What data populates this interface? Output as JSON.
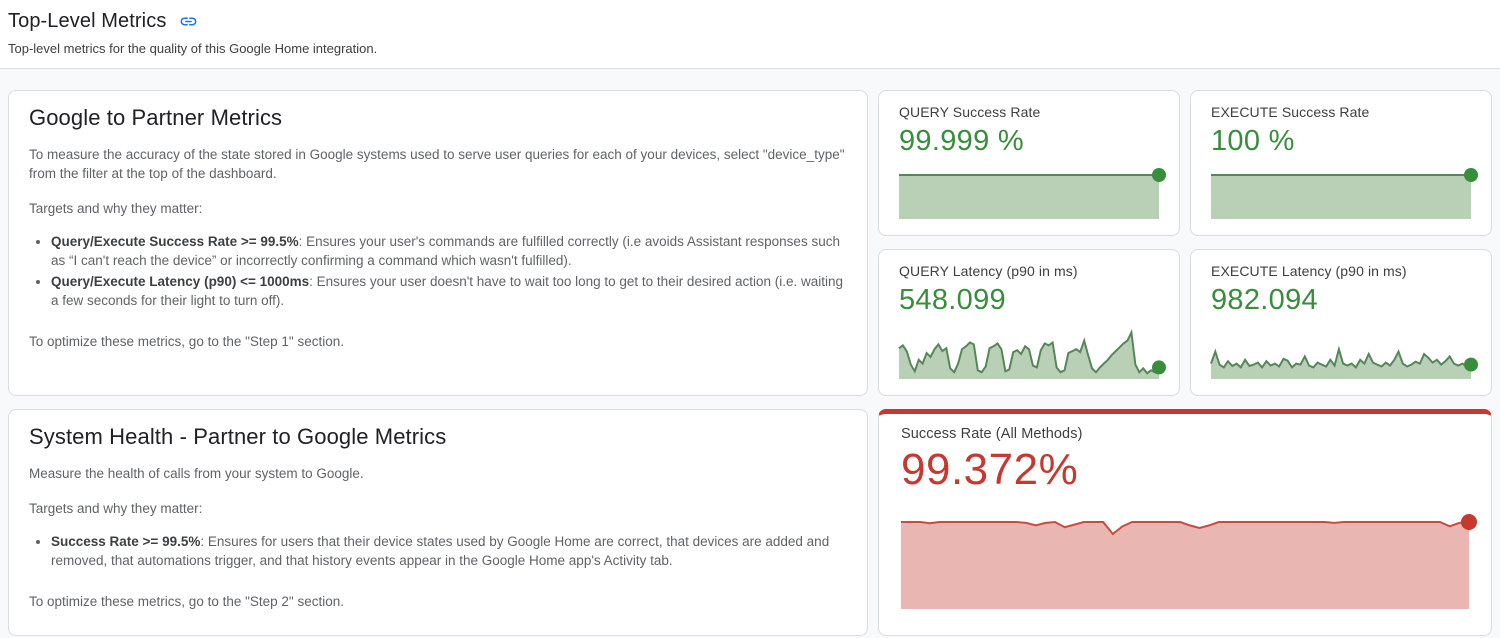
{
  "header": {
    "title": "Top-Level Metrics",
    "subtitle": "Top-level metrics for the quality of this Google Home integration."
  },
  "cards": {
    "google_to_partner": {
      "title": "Google to Partner Metrics",
      "intro": "To measure the accuracy of the state stored in Google systems used to serve user queries for each of your devices, select \"device_type\" from the filter at the top of the dashboard.",
      "targets_label": "Targets and why they matter:",
      "bullets": [
        {
          "bold": "Query/Execute Success Rate >= 99.5%",
          "rest": ": Ensures your user's commands are fulfilled correctly (i.e avoids Assistant responses such as “I can't reach the device” or incorrectly confirming a command which wasn't fulfilled)."
        },
        {
          "bold": "Query/Execute Latency (p90) <= 1000ms",
          "rest": ": Ensures your user doesn't have to wait too long to get to their desired action (i.e. waiting a few seconds for their light to turn off)."
        }
      ],
      "footer": "To optimize these metrics, go to the \"Step 1\" section."
    },
    "system_health": {
      "title": "System Health - Partner to Google Metrics",
      "intro": "Measure the health of calls from your system to Google.",
      "targets_label": "Targets and why they matter:",
      "bullets": [
        {
          "bold": "Success Rate >= 99.5%",
          "rest": ": Ensures for users that their device states used by Google Home are correct, that devices are added and removed, that automations trigger, and that history events appear in the Google Home app's Activity tab."
        }
      ],
      "footer": "To optimize these metrics, go to the \"Step 2\" section."
    }
  },
  "colors": {
    "accent_blue": "#1a73e8",
    "success_green": "#388e3c",
    "green_line": "#55875a",
    "green_fill": "#b9cfb6",
    "alert_red": "#c5392e",
    "red_line": "#cb4b40",
    "red_fill": "#e9b6b1",
    "card_border": "#dadce0",
    "page_bg": "#f8f9fa"
  },
  "chart_data": [
    {
      "id": "query-success-rate",
      "type": "area",
      "title": "QUERY Success Rate",
      "value": "99.999 %",
      "value_color": "#388e3c",
      "line": "#55875a",
      "fill": "#b9cfb6",
      "dot": "#388e3c",
      "dot_r": 7,
      "y_scale": "normalized 0-1 of sparkline height",
      "y": [
        1,
        1
      ]
    },
    {
      "id": "execute-success-rate",
      "type": "area",
      "title": "EXECUTE Success Rate",
      "value": "100 %",
      "value_color": "#388e3c",
      "line": "#55875a",
      "fill": "#b9cfb6",
      "dot": "#388e3c",
      "dot_r": 7,
      "y_scale": "normalized 0-1 of sparkline height",
      "y": [
        1,
        1
      ]
    },
    {
      "id": "query-latency-p90",
      "type": "area",
      "title": "QUERY Latency (p90 in ms)",
      "value": "548.099",
      "value_color": "#388e3c",
      "line": "#55875a",
      "fill": "#b9cfb6",
      "dot": "#388e3c",
      "dot_r": 7,
      "y_scale": "normalized 0-1 of sparkline height",
      "y": [
        0.62,
        0.68,
        0.55,
        0.28,
        0.14,
        0.38,
        0.3,
        0.52,
        0.44,
        0.6,
        0.7,
        0.56,
        0.62,
        0.2,
        0.12,
        0.3,
        0.6,
        0.66,
        0.74,
        0.7,
        0.16,
        0.12,
        0.24,
        0.62,
        0.66,
        0.72,
        0.6,
        0.14,
        0.18,
        0.54,
        0.58,
        0.5,
        0.66,
        0.6,
        0.26,
        0.22,
        0.58,
        0.72,
        0.68,
        0.74,
        0.22,
        0.12,
        0.16,
        0.52,
        0.56,
        0.6,
        0.54,
        0.78,
        0.48,
        0.2,
        0.12,
        0.22,
        0.3,
        0.38,
        0.48,
        0.56,
        0.64,
        0.72,
        0.78,
        0.95,
        0.28,
        0.12,
        0.2,
        0.1,
        0.16,
        0.12,
        0.22
      ]
    },
    {
      "id": "execute-latency-p90",
      "type": "area",
      "title": "EXECUTE Latency (p90 in ms)",
      "value": "982.094",
      "value_color": "#388e3c",
      "line": "#55875a",
      "fill": "#b9cfb6",
      "dot": "#388e3c",
      "dot_r": 7,
      "y_scale": "normalized 0-1 of sparkline height",
      "y": [
        0.3,
        0.55,
        0.28,
        0.22,
        0.35,
        0.25,
        0.3,
        0.22,
        0.38,
        0.25,
        0.28,
        0.32,
        0.22,
        0.35,
        0.26,
        0.3,
        0.24,
        0.4,
        0.36,
        0.22,
        0.3,
        0.28,
        0.45,
        0.26,
        0.22,
        0.32,
        0.28,
        0.24,
        0.38,
        0.26,
        0.6,
        0.3,
        0.26,
        0.3,
        0.22,
        0.38,
        0.3,
        0.5,
        0.32,
        0.28,
        0.24,
        0.32,
        0.26,
        0.38,
        0.55,
        0.3,
        0.24,
        0.28,
        0.34,
        0.3,
        0.5,
        0.42,
        0.32,
        0.38,
        0.28,
        0.35,
        0.45,
        0.3,
        0.26,
        0.3,
        0.24,
        0.28
      ]
    },
    {
      "id": "success-rate-all-methods",
      "type": "area",
      "title": "Success Rate (All Methods)",
      "value": "99.372%",
      "value_color": "#c5392e",
      "line": "#cb4b40",
      "fill": "#e9b6b1",
      "dot": "#c5392e",
      "dot_r": 8,
      "y_scale": "normalized 0-1 of sparkline height",
      "y": [
        1,
        1,
        1,
        0.985,
        1,
        1,
        1,
        1,
        1,
        1,
        1,
        1,
        1,
        0.99,
        0.96,
        0.99,
        1,
        0.94,
        0.97,
        1,
        1,
        1,
        0.86,
        0.95,
        1,
        1,
        1,
        1,
        1,
        1,
        0.96,
        0.93,
        0.96,
        1,
        1,
        1,
        1,
        1,
        1,
        1,
        1,
        1,
        1,
        1,
        1,
        0.99,
        1,
        1,
        1,
        1,
        1,
        1,
        1,
        1,
        1,
        1,
        1,
        0.95,
        0.99,
        1
      ]
    }
  ]
}
